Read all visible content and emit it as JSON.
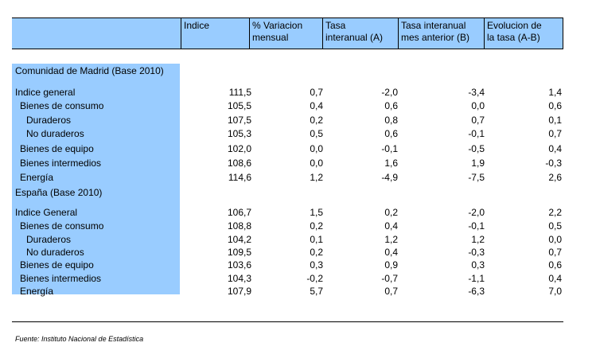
{
  "headers": {
    "indice": "Indice",
    "variacion": "% Variacion\nmensual",
    "tasa_a": "Tasa\ninteranual (A)",
    "tasa_b": "Tasa interanual\nmes anterior (B)",
    "evolucion": "Evolucion de\nla tasa (A-B)"
  },
  "madrid": {
    "title": "Comunidad de Madrid (Base 2010)",
    "rows": [
      {
        "label": "Indice general",
        "indice": "111,5",
        "variacion": "0,7",
        "tasa_a": "-2,0",
        "tasa_b": "-3,4",
        "evolucion": "1,4"
      },
      {
        "label": "Bienes de consumo",
        "indice": "105,5",
        "variacion": "0,4",
        "tasa_a": "0,6",
        "tasa_b": "0,0",
        "evolucion": "0,6"
      },
      {
        "label": "Duraderos",
        "indice": "107,5",
        "variacion": "0,2",
        "tasa_a": "0,8",
        "tasa_b": "0,7",
        "evolucion": "0,1"
      },
      {
        "label": "No duraderos",
        "indice": "105,3",
        "variacion": "0,5",
        "tasa_a": "0,6",
        "tasa_b": "-0,1",
        "evolucion": "0,7"
      },
      {
        "label": "Bienes de equipo",
        "indice": "102,0",
        "variacion": "0,0",
        "tasa_a": "-0,1",
        "tasa_b": "-0,5",
        "evolucion": "0,4"
      },
      {
        "label": "Bienes intermedios",
        "indice": "108,6",
        "variacion": "0,0",
        "tasa_a": "1,6",
        "tasa_b": "1,9",
        "evolucion": "-0,3"
      },
      {
        "label": "Energía",
        "indice": "114,6",
        "variacion": "1,2",
        "tasa_a": "-4,9",
        "tasa_b": "-7,5",
        "evolucion": "2,6"
      }
    ]
  },
  "espana": {
    "title": "España (Base 2010)",
    "rows": [
      {
        "label": "Indice General",
        "indice": "106,7",
        "variacion": "1,5",
        "tasa_a": "0,2",
        "tasa_b": "-2,0",
        "evolucion": "2,2"
      },
      {
        "label": "Bienes de consumo",
        "indice": "108,8",
        "variacion": "0,2",
        "tasa_a": "0,4",
        "tasa_b": "-0,1",
        "evolucion": "0,5"
      },
      {
        "label": "Duraderos",
        "indice": "104,2",
        "variacion": "0,1",
        "tasa_a": "1,2",
        "tasa_b": "1,2",
        "evolucion": "0,0"
      },
      {
        "label": "No duraderos",
        "indice": "109,5",
        "variacion": "0,2",
        "tasa_a": "0,4",
        "tasa_b": "-0,3",
        "evolucion": "0,7"
      },
      {
        "label": "Bienes de equipo",
        "indice": "103,6",
        "variacion": "0,3",
        "tasa_a": "0,9",
        "tasa_b": "0,3",
        "evolucion": "0,6"
      },
      {
        "label": "Bienes intermedios",
        "indice": "104,3",
        "variacion": "-0,2",
        "tasa_a": "-0,7",
        "tasa_b": "-1,1",
        "evolucion": "0,4"
      },
      {
        "label": "Energía",
        "indice": "107,9",
        "variacion": "5,7",
        "tasa_a": "0,7",
        "tasa_b": "-6,3",
        "evolucion": "7,0"
      }
    ]
  },
  "source": "Fuente: Instituto Nacional de Estadística"
}
